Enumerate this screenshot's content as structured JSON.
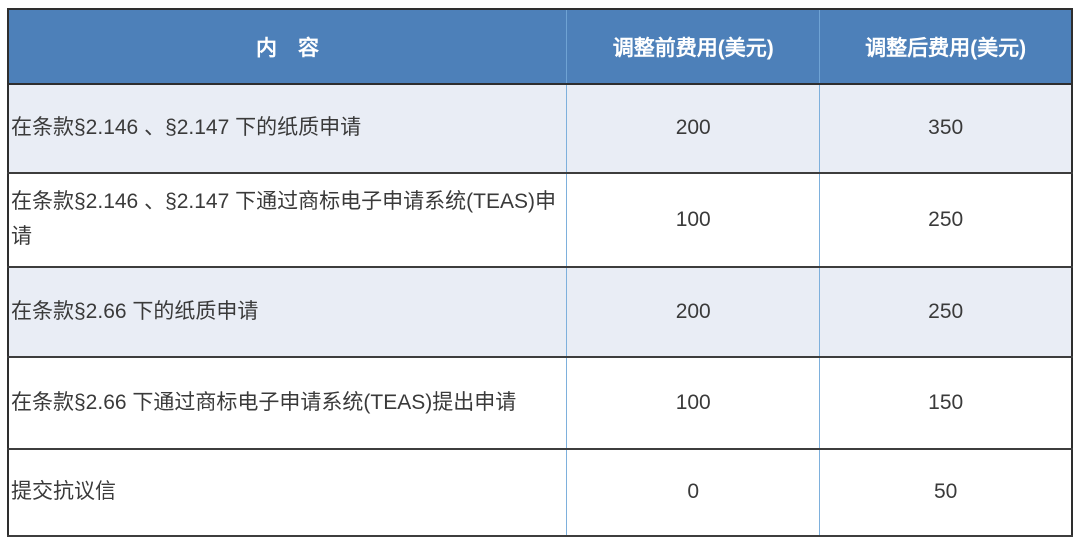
{
  "table": {
    "headers": {
      "content": "内　容",
      "fee_before": "调整前费用(美元)",
      "fee_after": "调整后费用(美元)"
    },
    "rows": [
      {
        "content": "在条款§2.146 、§2.147 下的纸质申请",
        "fee_before": "200",
        "fee_after": "350"
      },
      {
        "content": "在条款§2.146 、§2.147 下通过商标电子申请系统(TEAS)申请",
        "fee_before": "100",
        "fee_after": "250"
      },
      {
        "content": "在条款§2.66 下的纸质申请",
        "fee_before": "200",
        "fee_after": "250"
      },
      {
        "content": "在条款§2.66 下通过商标电子申请系统(TEAS)提出申请",
        "fee_before": "100",
        "fee_after": "150"
      },
      {
        "content": "提交抗议信",
        "fee_before": "0",
        "fee_after": "50"
      }
    ]
  },
  "colors": {
    "header_bg": "#4d80b9",
    "header_text": "#ffffff",
    "shaded_row_bg": "#e9edf5",
    "plain_row_bg": "#ffffff",
    "outer_border": "#2e2e2e",
    "row_border": "#3d3d3d",
    "column_divider": "#7eb0dc",
    "body_text": "#3a3a3a"
  }
}
